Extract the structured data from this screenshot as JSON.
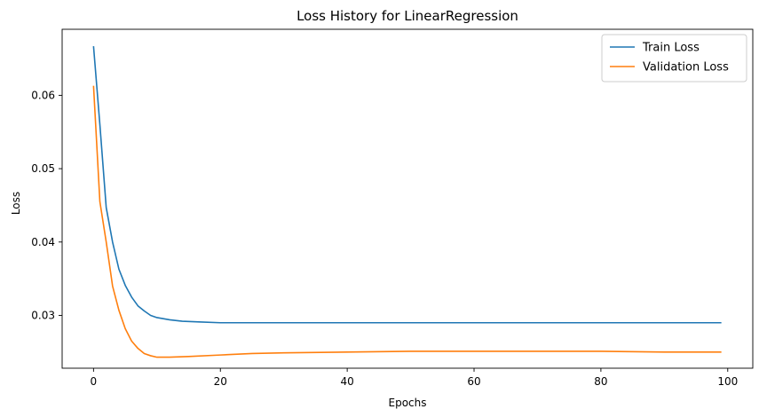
{
  "chart_data": {
    "type": "line",
    "title": "Loss History for LinearRegression",
    "xlabel": "Epochs",
    "ylabel": "Loss",
    "xlim": [
      -4.95,
      103.95
    ],
    "ylim": [
      0.0228,
      0.069
    ],
    "xticks": [
      0,
      20,
      40,
      60,
      80,
      100
    ],
    "yticks": [
      0.03,
      0.04,
      0.05,
      0.06
    ],
    "xtick_labels": [
      "0",
      "20",
      "40",
      "60",
      "80",
      "100"
    ],
    "ytick_labels": [
      "0.03",
      "0.04",
      "0.05",
      "0.06"
    ],
    "grid": false,
    "legend_position": "top-right",
    "series": [
      {
        "name": "Train Loss",
        "color": "#1f77b4",
        "points": [
          [
            0,
            0.0667
          ],
          [
            1,
            0.056
          ],
          [
            2,
            0.0447
          ],
          [
            3,
            0.04
          ],
          [
            4,
            0.0363
          ],
          [
            5,
            0.0341
          ],
          [
            6,
            0.0325
          ],
          [
            7,
            0.0313
          ],
          [
            8,
            0.0306
          ],
          [
            9,
            0.03
          ],
          [
            10,
            0.0297
          ],
          [
            12,
            0.0294
          ],
          [
            14,
            0.0292
          ],
          [
            17,
            0.0291
          ],
          [
            20,
            0.029
          ],
          [
            30,
            0.029
          ],
          [
            40,
            0.029
          ],
          [
            50,
            0.029
          ],
          [
            60,
            0.029
          ],
          [
            70,
            0.029
          ],
          [
            80,
            0.029
          ],
          [
            90,
            0.029
          ],
          [
            99,
            0.029
          ]
        ]
      },
      {
        "name": "Validation Loss",
        "color": "#ff7f0e",
        "points": [
          [
            0,
            0.0613
          ],
          [
            1,
            0.0455
          ],
          [
            2,
            0.04
          ],
          [
            3,
            0.034
          ],
          [
            4,
            0.0307
          ],
          [
            5,
            0.0282
          ],
          [
            6,
            0.0265
          ],
          [
            7,
            0.0255
          ],
          [
            8,
            0.0248
          ],
          [
            9,
            0.0245
          ],
          [
            10,
            0.0243
          ],
          [
            12,
            0.0243
          ],
          [
            15,
            0.0244
          ],
          [
            20,
            0.0246
          ],
          [
            25,
            0.0248
          ],
          [
            30,
            0.0249
          ],
          [
            40,
            0.025
          ],
          [
            50,
            0.0251
          ],
          [
            60,
            0.0251
          ],
          [
            70,
            0.0251
          ],
          [
            80,
            0.0251
          ],
          [
            90,
            0.025
          ],
          [
            99,
            0.025
          ]
        ]
      }
    ]
  }
}
